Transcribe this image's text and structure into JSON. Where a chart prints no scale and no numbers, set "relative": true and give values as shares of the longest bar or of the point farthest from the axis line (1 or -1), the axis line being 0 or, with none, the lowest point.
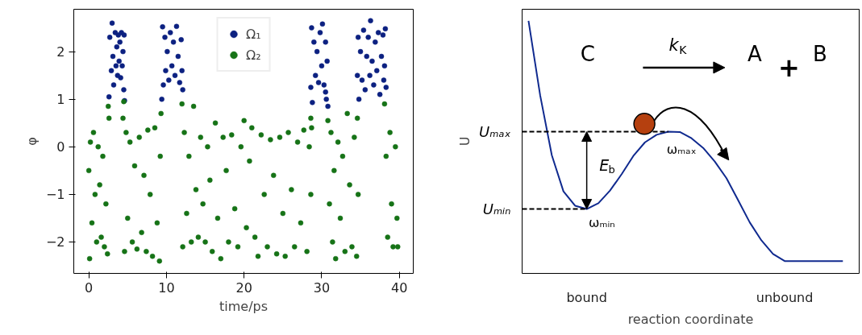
{
  "chart_data": [
    {
      "type": "scatter",
      "xlabel": "time/ps",
      "ylabel": "φ",
      "xlim": [
        -1.94,
        41.8
      ],
      "ylim": [
        -2.66,
        2.89
      ],
      "xticks": [
        0,
        10,
        20,
        30,
        40
      ],
      "yticks": [
        {
          "value": -2,
          "label": "−2"
        },
        {
          "value": -1,
          "label": "−1"
        },
        0,
        1,
        2
      ],
      "grid": false,
      "legend": "top",
      "marker": "circle",
      "series": [
        {
          "name": "Ω₁",
          "color": "#0c2181",
          "x": [
            2.6,
            2.7,
            2.9,
            3.0,
            3.1,
            3.2,
            3.4,
            3.5,
            3.6,
            3.7,
            3.8,
            3.9,
            4.0,
            4.1,
            4.2,
            4.3,
            4.4,
            4.5,
            4.6,
            4.55,
            9.4,
            9.5,
            9.6,
            9.8,
            9.9,
            10.1,
            10.3,
            10.5,
            10.7,
            10.9,
            11.1,
            11.3,
            11.5,
            11.7,
            11.9,
            12.0,
            12.1,
            28.6,
            28.7,
            28.8,
            29.0,
            29.2,
            29.4,
            29.6,
            29.8,
            30.0,
            30.1,
            30.3,
            30.5,
            30.6,
            30.7,
            30.8,
            30.5,
            34.6,
            34.7,
            34.8,
            35.0,
            35.2,
            35.4,
            35.6,
            35.8,
            36.0,
            36.2,
            36.3,
            36.5,
            36.7,
            36.9,
            37.1,
            37.3,
            37.5,
            37.7,
            37.9,
            38.0,
            38.2,
            38.3,
            38.1
          ],
          "values": [
            1.05,
            2.3,
            1.6,
            2.6,
            1.9,
            1.3,
            2.4,
            1.7,
            2.1,
            1.5,
            2.35,
            1.8,
            2.2,
            1.45,
            2.4,
            1.7,
            2.0,
            1.2,
            0.97,
            2.35,
            1.0,
            2.52,
            1.3,
            2.3,
            1.6,
            2.0,
            1.4,
            2.4,
            1.7,
            2.2,
            1.5,
            2.53,
            1.9,
            1.35,
            2.25,
            1.6,
            1.2,
            1.25,
            2.5,
            0.93,
            2.2,
            1.5,
            2.0,
            1.35,
            2.4,
            1.7,
            2.58,
            1.3,
            2.2,
            1.0,
            1.8,
            0.85,
            1.15,
            1.5,
            2.3,
            1.0,
            2.0,
            1.4,
            2.45,
            1.2,
            1.9,
            2.3,
            1.5,
            2.65,
            1.8,
            1.3,
            2.2,
            1.6,
            2.4,
            1.1,
            1.9,
            2.35,
            1.4,
            2.48,
            1.25,
            1.7
          ]
        },
        {
          "name": "Ω₂",
          "color": "#167317",
          "x": [
            0.0,
            0.1,
            0.2,
            0.4,
            0.6,
            0.8,
            1.0,
            1.2,
            1.4,
            1.6,
            1.8,
            2.0,
            2.2,
            2.4,
            2.5,
            2.6,
            4.4,
            4.5,
            4.6,
            4.8,
            5.0,
            5.3,
            5.6,
            5.9,
            6.2,
            6.5,
            6.8,
            7.1,
            7.4,
            7.6,
            7.9,
            8.2,
            8.5,
            8.8,
            9.1,
            9.3,
            9.2,
            12.0,
            12.1,
            12.3,
            12.6,
            12.9,
            13.2,
            13.5,
            13.8,
            14.1,
            14.4,
            14.7,
            15.0,
            15.3,
            15.6,
            15.9,
            16.3,
            16.6,
            17.0,
            17.3,
            17.7,
            18.0,
            18.4,
            18.8,
            19.2,
            19.6,
            20.0,
            20.3,
            20.7,
            21.0,
            21.4,
            21.8,
            22.2,
            22.6,
            23.0,
            23.4,
            23.8,
            24.2,
            24.6,
            25.0,
            25.3,
            25.7,
            26.1,
            26.5,
            26.9,
            27.3,
            27.7,
            28.1,
            28.4,
            28.6,
            28.6,
            28.7,
            30.8,
            31.0,
            31.2,
            31.4,
            31.6,
            31.8,
            32.1,
            32.4,
            32.7,
            33.0,
            33.3,
            33.6,
            33.9,
            34.2,
            34.5,
            34.6,
            34.7,
            38.1,
            38.3,
            38.5,
            38.8,
            39.0,
            39.2,
            39.5,
            39.7,
            39.8
          ],
          "values": [
            -0.5,
            -2.35,
            0.1,
            -1.6,
            0.3,
            -1.0,
            -2.0,
            0.0,
            -0.8,
            -1.9,
            -0.2,
            -2.1,
            -1.2,
            -2.25,
            0.85,
            0.6,
            0.6,
            0.95,
            -2.2,
            0.3,
            -1.5,
            0.1,
            -2.0,
            -0.4,
            -2.15,
            0.2,
            -1.8,
            -0.6,
            -2.2,
            0.35,
            -1.0,
            -2.3,
            0.4,
            -1.6,
            -2.4,
            0.7,
            -0.2,
            0.9,
            -2.1,
            0.3,
            -1.4,
            -0.2,
            -2.0,
            0.85,
            -0.9,
            -1.9,
            0.2,
            -1.2,
            -2.0,
            0.0,
            -0.7,
            -2.2,
            0.5,
            -1.5,
            -2.35,
            0.2,
            -0.5,
            -2.0,
            0.25,
            -1.3,
            -2.1,
            0.0,
            0.55,
            -1.7,
            -0.3,
            0.4,
            -1.9,
            -2.3,
            0.25,
            -1.0,
            -2.1,
            0.15,
            -0.6,
            -2.25,
            0.2,
            -1.4,
            -2.3,
            0.3,
            -0.9,
            -2.1,
            0.1,
            -1.6,
            0.35,
            -2.2,
            0.0,
            -1.0,
            0.6,
            0.4,
            0.55,
            -1.2,
            0.3,
            -2.0,
            -0.5,
            -2.35,
            0.1,
            -1.5,
            -0.2,
            -2.2,
            0.7,
            -0.8,
            -2.1,
            0.2,
            -2.3,
            0.6,
            -1.0,
            0.9,
            -0.2,
            -1.9,
            0.3,
            -1.2,
            -2.1,
            0.0,
            -1.5,
            -2.1
          ]
        }
      ]
    },
    {
      "type": "line",
      "relative": true,
      "xlabel": "reaction coordinate",
      "ylabel": "U",
      "grid": false,
      "categories": [
        null,
        null,
        null,
        null,
        null,
        "bound",
        null,
        null,
        null,
        null,
        null,
        null,
        null,
        null,
        null,
        null,
        null,
        null,
        null,
        null,
        null,
        null,
        "unbound",
        null,
        null,
        null,
        null,
        null
      ],
      "series": [
        {
          "color": "#102a8f",
          "values": [
            1.0,
            0.705,
            0.468,
            0.325,
            0.268,
            0.255,
            0.278,
            0.328,
            0.393,
            0.465,
            0.519,
            0.549,
            0.561,
            0.56,
            0.535,
            0.497,
            0.443,
            0.377,
            0.29,
            0.202,
            0.131,
            0.077,
            0.049,
            0.049,
            0.049,
            0.049,
            0.049,
            0.049
          ]
        }
      ],
      "ref_lines": [
        {
          "axis": "y",
          "value": 0.561,
          "label": "Uₘₐₓ",
          "color": "#000000",
          "line_style": "dashed"
        },
        {
          "axis": "y",
          "value": 0.255,
          "label": "Uₘᵢₙ",
          "color": "#000000",
          "line_style": "dashed"
        }
      ],
      "annotations": [
        "C",
        "k$_{K}$",
        "A",
        "+",
        "B",
        "E$_{b}$",
        "ωₘₐₓ",
        "ωₘᵢₙ"
      ]
    }
  ]
}
